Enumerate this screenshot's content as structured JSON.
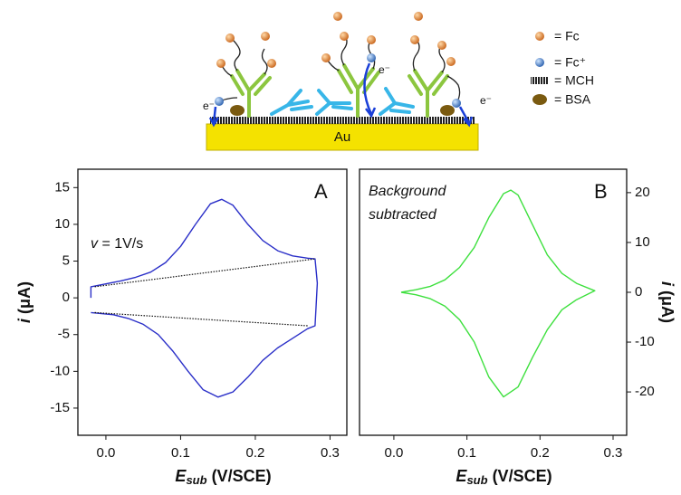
{
  "diagram": {
    "substrate": "Au",
    "legend": [
      "= Fc",
      "= Fc⁺",
      "= MCH",
      "= BSA"
    ],
    "electron_labels": [
      "e⁻",
      "e⁻",
      "e⁻",
      "e⁻"
    ]
  },
  "chart_data": [
    {
      "type": "line",
      "panel_label": "A",
      "annotation": [
        "v",
        " = 1V/s"
      ],
      "xlabel": [
        "E",
        "sub",
        " (V/SCE)"
      ],
      "ylabel": [
        "i",
        " (μA)"
      ],
      "yaxis_side": "left",
      "xlim": [
        -0.0375,
        0.3225
      ],
      "ylim": [
        -18.7,
        17.5
      ],
      "xticks": [
        {
          "value": 0,
          "label": "0.0"
        },
        0.1,
        0.2,
        0.3
      ],
      "yticks": [
        15,
        10,
        5,
        0,
        -5,
        -10,
        -15
      ],
      "series": [
        {
          "color": "#2a2fc8",
          "style": "solid",
          "x": [
            -0.02,
            -0.02,
            0.0,
            0.02,
            0.04,
            0.06,
            0.08,
            0.1,
            0.12,
            0.14,
            0.155,
            0.17,
            0.19,
            0.21,
            0.23,
            0.25,
            0.27,
            0.28,
            0.283,
            0.28,
            0.27,
            0.25,
            0.23,
            0.21,
            0.19,
            0.17,
            0.15,
            0.13,
            0.11,
            0.09,
            0.07,
            0.05,
            0.03,
            0.01,
            -0.02
          ],
          "values": [
            0,
            1.5,
            1.9,
            2.3,
            2.8,
            3.5,
            4.8,
            7.0,
            10.0,
            12.8,
            13.4,
            12.6,
            10.0,
            7.8,
            6.4,
            5.7,
            5.4,
            5.3,
            2,
            -3.8,
            -4.2,
            -5.5,
            -6.8,
            -8.5,
            -10.8,
            -12.8,
            -13.5,
            -12.5,
            -10.0,
            -7.3,
            -5.0,
            -3.6,
            -2.8,
            -2.3,
            -2.0
          ]
        },
        {
          "color": "#111111",
          "style": "dotted",
          "x": [
            -0.015,
            0.28
          ],
          "values": [
            1.5,
            5.3
          ]
        },
        {
          "color": "#111111",
          "style": "dotted",
          "x": [
            -0.015,
            0.27
          ],
          "values": [
            -2.0,
            -3.8
          ]
        }
      ]
    },
    {
      "type": "line",
      "panel_label": "B",
      "annotation": [
        "Background",
        "subtracted"
      ],
      "xlabel": [
        "E",
        "sub",
        " (V/SCE)"
      ],
      "ylabel": [
        "i",
        " (μA)"
      ],
      "yaxis_side": "right",
      "xlim": [
        -0.047,
        0.3186
      ],
      "ylim": [
        -28.7,
        24.7
      ],
      "xticks": [
        {
          "value": 0,
          "label": "0.0"
        },
        0.1,
        0.2,
        0.3
      ],
      "yticks": [
        20,
        10,
        0,
        -10,
        -20
      ],
      "series": [
        {
          "color": "#3ee03e",
          "style": "solid",
          "x": [
            0.01,
            0.03,
            0.05,
            0.07,
            0.09,
            0.11,
            0.13,
            0.15,
            0.16,
            0.17,
            0.19,
            0.21,
            0.23,
            0.25,
            0.275,
            0.25,
            0.23,
            0.21,
            0.19,
            0.17,
            0.15,
            0.13,
            0.11,
            0.09,
            0.07,
            0.05,
            0.03,
            0.01
          ],
          "values": [
            0,
            0.5,
            1.2,
            2.5,
            5.0,
            9.0,
            15.0,
            19.8,
            20.5,
            19.5,
            13.5,
            7.5,
            3.8,
            1.8,
            0.3,
            -1.5,
            -3.5,
            -7.5,
            -13,
            -19,
            -21,
            -17,
            -10,
            -5.5,
            -2.8,
            -1.3,
            -0.5,
            0
          ]
        }
      ]
    }
  ]
}
